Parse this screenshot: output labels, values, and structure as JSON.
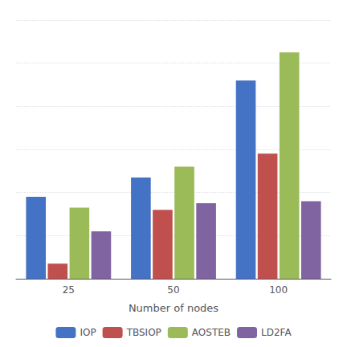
{
  "chart_data": {
    "type": "bar",
    "xlabel": "Number of nodes",
    "categories": [
      25,
      50,
      100
    ],
    "series": [
      {
        "name": "IOP",
        "color": "#4472C4",
        "values": [
          0.38,
          0.47,
          0.92
        ]
      },
      {
        "name": "TBSIOP",
        "color": "#C0504D",
        "values": [
          0.07,
          0.32,
          0.58
        ]
      },
      {
        "name": "AOSTEB",
        "color": "#9BBB59",
        "values": [
          0.33,
          0.52,
          1.05
        ]
      },
      {
        "name": "LD2FA",
        "color": "#8064A2",
        "values": [
          0.22,
          0.35,
          0.36
        ]
      }
    ],
    "ylim": [
      0,
      1.2
    ],
    "yticks": [
      0,
      0.2,
      0.4,
      0.6,
      0.8,
      1.0,
      1.2
    ],
    "grid": true,
    "legend": "bottom",
    "tick_labels": "x"
  }
}
